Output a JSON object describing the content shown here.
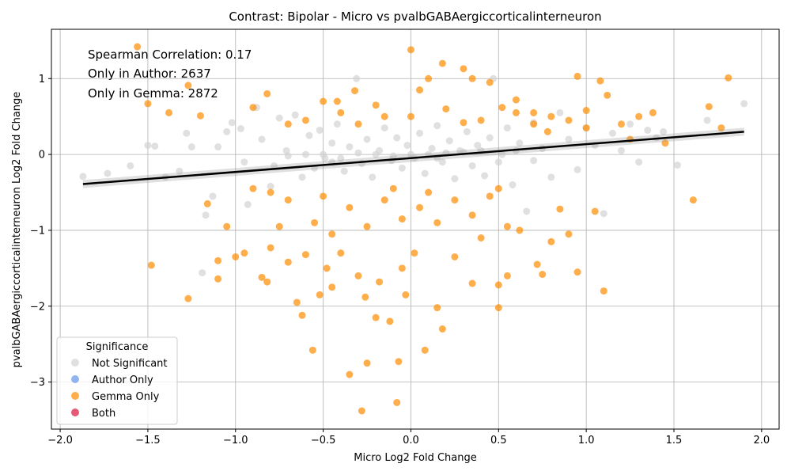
{
  "chart_data": {
    "type": "scatter",
    "title": "Contrast: Bipolar - Micro vs pvalbGABAergiccorticalinterneuron",
    "xlabel": "Micro Log2 Fold Change",
    "ylabel": "pvalbGABAergiccorticalinterneuron Log2 Fold Change",
    "xlim": [
      -2.05,
      2.1
    ],
    "ylim": [
      -3.62,
      1.65
    ],
    "xticks": [
      -2.0,
      -1.5,
      -1.0,
      -0.5,
      0.0,
      0.5,
      1.0,
      1.5,
      2.0
    ],
    "xtick_labels": [
      "−2.0",
      "−1.5",
      "−1.0",
      "−0.5",
      "0.0",
      "0.5",
      "1.0",
      "1.5",
      "2.0"
    ],
    "yticks": [
      -3,
      -2,
      -1,
      0,
      1
    ],
    "ytick_labels": [
      "−3",
      "−2",
      "−1",
      "0",
      "1"
    ],
    "grid": true,
    "annotations": [
      "Spearman Correlation: 0.17",
      "Only in Author: 2637",
      "Only in Gemma: 2872"
    ],
    "legend": {
      "title": "Significance",
      "placement": "lower-left",
      "entries": [
        {
          "label": "Not Significant",
          "color": "#d3d3d3"
        },
        {
          "label": "Author Only",
          "color": "#6495ed"
        },
        {
          "label": "Gemma Only",
          "color": "#ff8c00"
        },
        {
          "label": "Both",
          "color": "#dc143c"
        }
      ]
    },
    "regression_line": {
      "x": [
        -1.87,
        1.9
      ],
      "y": [
        -0.39,
        0.3
      ],
      "color": "#000000"
    },
    "series": [
      {
        "name": "Not Significant",
        "color": "#d3d3d3",
        "points": [
          [
            -1.87,
            -0.29
          ],
          [
            -1.73,
            -0.25
          ],
          [
            -1.5,
            0.12
          ],
          [
            -1.46,
            0.11
          ],
          [
            -1.32,
            -0.22
          ],
          [
            -1.25,
            0.1
          ],
          [
            -1.19,
            -1.56
          ],
          [
            -1.17,
            -0.8
          ],
          [
            -1.13,
            -0.55
          ],
          [
            -1.05,
            0.3
          ],
          [
            -1.02,
            0.42
          ],
          [
            -0.97,
            0.34
          ],
          [
            -0.93,
            -0.66
          ],
          [
            -0.88,
            0.62
          ],
          [
            -0.85,
            0.2
          ],
          [
            -0.8,
            -0.42
          ],
          [
            -0.75,
            0.48
          ],
          [
            -0.71,
            0.05
          ],
          [
            -0.66,
            0.52
          ],
          [
            -0.62,
            -0.3
          ],
          [
            -0.58,
            0.25
          ],
          [
            -0.55,
            -0.18
          ],
          [
            -0.52,
            0.32
          ],
          [
            -0.49,
            -0.05
          ],
          [
            -0.45,
            0.15
          ],
          [
            -0.42,
            0.4
          ],
          [
            -0.38,
            -0.22
          ],
          [
            -0.35,
            0.1
          ],
          [
            -0.31,
            1.0
          ],
          [
            -0.28,
            -0.12
          ],
          [
            -0.25,
            0.2
          ],
          [
            -0.22,
            -0.3
          ],
          [
            -0.18,
            0.05
          ],
          [
            -0.15,
            0.35
          ],
          [
            -0.11,
            -0.08
          ],
          [
            -0.08,
            0.22
          ],
          [
            -0.05,
            -0.18
          ],
          [
            -0.02,
            0.12
          ],
          [
            0.02,
            -0.05
          ],
          [
            0.05,
            0.28
          ],
          [
            0.08,
            -0.25
          ],
          [
            0.12,
            0.08
          ],
          [
            0.15,
            0.38
          ],
          [
            0.18,
            -0.1
          ],
          [
            0.22,
            0.18
          ],
          [
            0.25,
            -0.32
          ],
          [
            0.28,
            0.05
          ],
          [
            0.32,
            0.3
          ],
          [
            0.35,
            -0.15
          ],
          [
            0.38,
            0.12
          ],
          [
            0.42,
            -0.28
          ],
          [
            0.45,
            0.22
          ],
          [
            0.47,
            1.0
          ],
          [
            0.5,
            -0.1
          ],
          [
            0.55,
            0.35
          ],
          [
            0.58,
            -0.4
          ],
          [
            0.62,
            0.15
          ],
          [
            0.66,
            -0.75
          ],
          [
            0.7,
            0.42
          ],
          [
            0.75,
            0.08
          ],
          [
            0.8,
            -0.3
          ],
          [
            0.85,
            0.55
          ],
          [
            0.9,
            0.2
          ],
          [
            0.95,
            -0.2
          ],
          [
            1.0,
            0.35
          ],
          [
            1.05,
            0.12
          ],
          [
            1.1,
            -0.78
          ],
          [
            1.15,
            0.28
          ],
          [
            1.2,
            0.05
          ],
          [
            1.25,
            0.4
          ],
          [
            1.3,
            -0.1
          ],
          [
            1.35,
            0.32
          ],
          [
            1.4,
            0.22
          ],
          [
            1.44,
            0.3
          ],
          [
            1.52,
            -0.14
          ],
          [
            1.69,
            0.45
          ],
          [
            1.9,
            0.67
          ],
          [
            -1.6,
            -0.15
          ],
          [
            -1.4,
            -0.3
          ],
          [
            -1.28,
            0.28
          ],
          [
            -1.1,
            0.1
          ],
          [
            -0.95,
            -0.1
          ],
          [
            -0.78,
            -0.15
          ],
          [
            -0.6,
            0.0
          ],
          [
            -0.4,
            -0.05
          ],
          [
            -0.2,
            0.0
          ],
          [
            0.0,
            0.0
          ],
          [
            0.2,
            0.02
          ],
          [
            0.4,
            0.05
          ],
          [
            0.6,
            0.05
          ],
          [
            -0.5,
            0.0
          ],
          [
            -0.3,
            0.02
          ],
          [
            -0.1,
            -0.02
          ],
          [
            0.1,
            0.0
          ],
          [
            0.3,
            0.03
          ],
          [
            0.7,
            -0.08
          ],
          [
            -0.7,
            -0.02
          ],
          [
            -0.45,
            -0.1
          ],
          [
            0.15,
            -0.05
          ],
          [
            0.52,
            0.0
          ]
        ]
      },
      {
        "name": "Author Only",
        "color": "#6495ed",
        "points": []
      },
      {
        "name": "Gemma Only",
        "color": "#ff8c00",
        "points": [
          [
            -1.56,
            1.42
          ],
          [
            -1.5,
            0.67
          ],
          [
            -1.48,
            -1.46
          ],
          [
            -1.38,
            0.55
          ],
          [
            -1.27,
            0.91
          ],
          [
            -1.27,
            -1.9
          ],
          [
            -1.2,
            0.51
          ],
          [
            -1.16,
            -0.65
          ],
          [
            -1.1,
            -1.4
          ],
          [
            -1.1,
            -1.64
          ],
          [
            -1.05,
            -0.95
          ],
          [
            -1.0,
            -1.35
          ],
          [
            -0.95,
            -1.3
          ],
          [
            -0.9,
            0.62
          ],
          [
            -0.85,
            -1.62
          ],
          [
            -0.82,
            0.8
          ],
          [
            -0.82,
            -1.68
          ],
          [
            -0.8,
            -1.23
          ],
          [
            -0.75,
            -0.95
          ],
          [
            -0.7,
            -1.42
          ],
          [
            -0.65,
            -1.95
          ],
          [
            -0.62,
            -2.12
          ],
          [
            -0.6,
            -1.32
          ],
          [
            -0.56,
            -2.58
          ],
          [
            -0.52,
            -1.85
          ],
          [
            -0.5,
            0.7
          ],
          [
            -0.48,
            -1.5
          ],
          [
            -0.45,
            -1.75
          ],
          [
            -0.42,
            0.7
          ],
          [
            -0.4,
            -1.3
          ],
          [
            -0.35,
            -2.9
          ],
          [
            -0.32,
            0.84
          ],
          [
            -0.3,
            -1.6
          ],
          [
            -0.28,
            -3.38
          ],
          [
            -0.26,
            -1.88
          ],
          [
            -0.25,
            -2.75
          ],
          [
            -0.2,
            -2.15
          ],
          [
            -0.18,
            -1.68
          ],
          [
            -0.12,
            -2.2
          ],
          [
            -0.08,
            -3.27
          ],
          [
            -0.07,
            -2.73
          ],
          [
            -0.05,
            -1.5
          ],
          [
            -0.03,
            -1.85
          ],
          [
            0.0,
            1.38
          ],
          [
            0.02,
            -1.3
          ],
          [
            0.05,
            0.85
          ],
          [
            0.08,
            -2.58
          ],
          [
            0.1,
            1.0
          ],
          [
            0.15,
            -2.02
          ],
          [
            0.18,
            -2.3
          ],
          [
            0.18,
            1.2
          ],
          [
            0.25,
            -1.35
          ],
          [
            0.3,
            1.13
          ],
          [
            0.35,
            1.0
          ],
          [
            0.35,
            -1.7
          ],
          [
            0.4,
            -1.1
          ],
          [
            0.45,
            0.95
          ],
          [
            0.5,
            -2.02
          ],
          [
            0.5,
            -1.72
          ],
          [
            0.52,
            0.62
          ],
          [
            0.55,
            -1.6
          ],
          [
            0.6,
            0.72
          ],
          [
            0.62,
            -1.0
          ],
          [
            0.7,
            0.55
          ],
          [
            0.72,
            -1.45
          ],
          [
            0.75,
            -1.58
          ],
          [
            0.78,
            0.3
          ],
          [
            0.8,
            -1.15
          ],
          [
            0.85,
            -0.72
          ],
          [
            0.9,
            -1.05
          ],
          [
            0.95,
            1.03
          ],
          [
            0.95,
            -1.55
          ],
          [
            1.0,
            0.35
          ],
          [
            1.05,
            -0.75
          ],
          [
            1.08,
            0.97
          ],
          [
            1.1,
            -1.8
          ],
          [
            1.12,
            0.78
          ],
          [
            1.2,
            0.4
          ],
          [
            1.25,
            0.2
          ],
          [
            1.3,
            0.5
          ],
          [
            1.38,
            0.55
          ],
          [
            1.45,
            0.15
          ],
          [
            1.61,
            -0.6
          ],
          [
            1.7,
            0.63
          ],
          [
            1.77,
            0.35
          ],
          [
            1.81,
            1.01
          ],
          [
            -0.9,
            -0.45
          ],
          [
            -0.7,
            -0.6
          ],
          [
            -0.55,
            -0.9
          ],
          [
            -0.45,
            -1.05
          ],
          [
            -0.35,
            -0.7
          ],
          [
            -0.25,
            -0.95
          ],
          [
            -0.15,
            -0.6
          ],
          [
            -0.05,
            -0.85
          ],
          [
            0.05,
            -0.7
          ],
          [
            0.15,
            -0.9
          ],
          [
            0.25,
            -0.6
          ],
          [
            0.35,
            -0.8
          ],
          [
            0.45,
            -0.55
          ],
          [
            0.55,
            -0.95
          ],
          [
            -0.6,
            0.45
          ],
          [
            -0.4,
            0.55
          ],
          [
            -0.2,
            0.65
          ],
          [
            0.0,
            0.5
          ],
          [
            0.2,
            0.6
          ],
          [
            0.4,
            0.45
          ],
          [
            0.6,
            0.55
          ],
          [
            0.8,
            0.5
          ],
          [
            -0.3,
            0.4
          ],
          [
            0.3,
            0.42
          ],
          [
            -0.5,
            -0.55
          ],
          [
            -0.1,
            -0.45
          ],
          [
            0.1,
            -0.5
          ],
          [
            0.5,
            -0.45
          ],
          [
            0.7,
            0.4
          ],
          [
            -0.7,
            0.4
          ],
          [
            0.9,
            0.45
          ],
          [
            -0.8,
            -0.5
          ],
          [
            1.0,
            0.58
          ],
          [
            -0.15,
            0.5
          ]
        ]
      },
      {
        "name": "Both",
        "color": "#dc143c",
        "points": []
      }
    ]
  }
}
